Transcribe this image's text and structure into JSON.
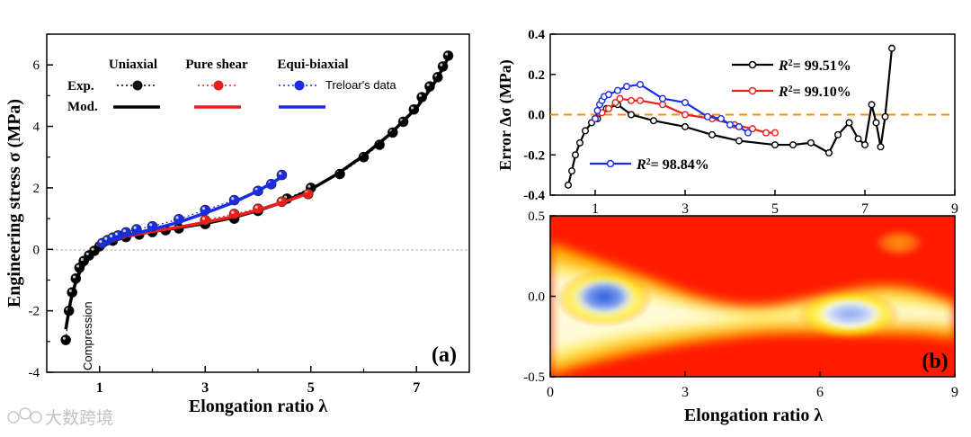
{
  "chart_data": [
    {
      "type": "scatter",
      "panel_label": "(a)",
      "xlabel": "Elongation ratio λ",
      "ylabel": "Engineering stress σ (MPa)",
      "xlim": [
        0,
        8
      ],
      "ylim": [
        -4,
        7
      ],
      "xticks": [
        "1",
        "3",
        "5",
        "7"
      ],
      "yticks": [
        "-4",
        "-2",
        "0",
        "2",
        "4",
        "6"
      ],
      "legend": {
        "headers": [
          "Uniaxial",
          "Pure shear",
          "Equi-biaxial"
        ],
        "row_labels": [
          "Exp.",
          "Mod."
        ],
        "note": "Treloar's data"
      },
      "annotation": "Compression",
      "colors": {
        "uniaxial": "#000000",
        "pure_shear": "#e8201c",
        "equi_biaxial": "#1a2de0"
      },
      "series": [
        {
          "name": "Uniaxial Exp.",
          "x": [
            0.36,
            0.42,
            0.48,
            0.55,
            0.62,
            0.7,
            0.8,
            0.9,
            1.0,
            1.25,
            1.5,
            1.75,
            2.0,
            2.25,
            2.5,
            3.0,
            3.55,
            4.0,
            4.55,
            5.0,
            5.55,
            6.0,
            6.3,
            6.55,
            6.75,
            6.95,
            7.1,
            7.25,
            7.4,
            7.5,
            7.6
          ],
          "y": [
            -2.95,
            -2.0,
            -1.4,
            -0.95,
            -0.6,
            -0.38,
            -0.2,
            -0.05,
            0.1,
            0.28,
            0.4,
            0.48,
            0.56,
            0.62,
            0.68,
            0.82,
            1.0,
            1.25,
            1.65,
            2.0,
            2.45,
            3.0,
            3.4,
            3.8,
            4.15,
            4.55,
            4.95,
            5.3,
            5.6,
            5.95,
            6.3
          ]
        },
        {
          "name": "Uniaxial Mod.",
          "x": [
            0.36,
            0.45,
            0.55,
            0.65,
            0.8,
            1.0,
            1.3,
            1.6,
            2.0,
            2.5,
            3.0,
            3.5,
            4.0,
            4.5,
            5.0,
            5.5,
            6.0,
            6.5,
            7.0,
            7.3,
            7.5,
            7.65
          ],
          "y": [
            -2.6,
            -1.7,
            -1.05,
            -0.65,
            -0.28,
            0.05,
            0.3,
            0.45,
            0.58,
            0.7,
            0.84,
            1.02,
            1.26,
            1.55,
            1.95,
            2.45,
            3.05,
            3.75,
            4.6,
            5.3,
            5.9,
            6.4
          ]
        },
        {
          "name": "Pure shear Exp.",
          "x": [
            3.0,
            3.55,
            4.0,
            4.45,
            4.95
          ],
          "y": [
            0.95,
            1.15,
            1.32,
            1.55,
            1.8
          ]
        },
        {
          "name": "Pure shear Mod.",
          "x": [
            1.0,
            1.5,
            2.0,
            2.5,
            3.0,
            3.5,
            4.0,
            4.5,
            4.95
          ],
          "y": [
            0.1,
            0.42,
            0.58,
            0.72,
            0.88,
            1.05,
            1.28,
            1.55,
            1.82
          ]
        },
        {
          "name": "Equi-biaxial Exp.",
          "x": [
            1.05,
            1.15,
            1.25,
            1.35,
            1.5,
            1.7,
            2.0,
            2.5,
            3.0,
            3.55,
            4.0,
            4.25,
            4.45
          ],
          "y": [
            0.2,
            0.3,
            0.38,
            0.45,
            0.55,
            0.65,
            0.75,
            0.98,
            1.28,
            1.6,
            1.9,
            2.12,
            2.42
          ]
        },
        {
          "name": "Equi-biaxial Mod.",
          "x": [
            1.0,
            1.2,
            1.5,
            2.0,
            2.5,
            3.0,
            3.5,
            4.0,
            4.4
          ],
          "y": [
            0.1,
            0.3,
            0.45,
            0.65,
            0.88,
            1.18,
            1.5,
            1.9,
            2.3
          ]
        }
      ]
    },
    {
      "type": "line",
      "xlabel": "",
      "ylabel": "Error Δσ (MPa)",
      "xlim": [
        0,
        9
      ],
      "ylim": [
        -0.4,
        0.4
      ],
      "xticks": [
        "1",
        "3",
        "5",
        "7",
        "9"
      ],
      "yticks": [
        "0.4",
        "0.2",
        "0.0",
        "-0.2",
        "-0.4"
      ],
      "reference_line": 0,
      "series": [
        {
          "name": "Uniaxial",
          "r2_label": "= 99.51%",
          "x": [
            0.4,
            0.48,
            0.56,
            0.66,
            0.78,
            0.92,
            1.05,
            1.25,
            1.5,
            1.8,
            2.3,
            3.0,
            3.6,
            4.2,
            5.0,
            5.4,
            5.8,
            6.2,
            6.4,
            6.65,
            6.85,
            7.0,
            7.15,
            7.25,
            7.35,
            7.45,
            7.6
          ],
          "y": [
            -0.35,
            -0.28,
            -0.2,
            -0.14,
            -0.08,
            -0.04,
            -0.02,
            0.03,
            0.05,
            0.0,
            -0.03,
            -0.06,
            -0.1,
            -0.13,
            -0.15,
            -0.15,
            -0.14,
            -0.19,
            -0.1,
            -0.04,
            -0.12,
            -0.15,
            0.05,
            -0.04,
            -0.16,
            -0.01,
            0.33
          ]
        },
        {
          "name": "Pure shear",
          "r2_label": "= 99.10%",
          "x": [
            1.0,
            1.15,
            1.3,
            1.45,
            1.55,
            1.8,
            2.0,
            2.5,
            3.0,
            3.6,
            4.1,
            4.5,
            4.8,
            5.0
          ],
          "y": [
            -0.02,
            0.01,
            0.03,
            0.06,
            0.08,
            0.07,
            0.07,
            0.05,
            0.0,
            -0.02,
            -0.05,
            -0.07,
            -0.09,
            -0.09
          ]
        },
        {
          "name": "Equi-biaxial",
          "r2_label": "= 98.84%",
          "x": [
            1.0,
            1.05,
            1.1,
            1.15,
            1.2,
            1.3,
            1.5,
            1.7,
            2.0,
            2.5,
            3.0,
            3.5,
            3.8,
            4.0,
            4.2,
            4.4
          ],
          "y": [
            -0.02,
            0.02,
            0.05,
            0.07,
            0.09,
            0.1,
            0.12,
            0.14,
            0.15,
            0.08,
            0.06,
            -0.01,
            -0.02,
            -0.05,
            -0.06,
            -0.09
          ]
        }
      ]
    },
    {
      "type": "heatmap",
      "panel_label": "(b)",
      "xlabel": "Elongation ratio λ",
      "ylabel": "",
      "xlim": [
        0,
        9
      ],
      "ylim": [
        -0.5,
        0.5
      ],
      "xticks": [
        "0",
        "3",
        "6",
        "9"
      ],
      "yticks": [
        "0.5",
        "0.0",
        "-0.5"
      ]
    }
  ],
  "watermark": "大数跨境"
}
